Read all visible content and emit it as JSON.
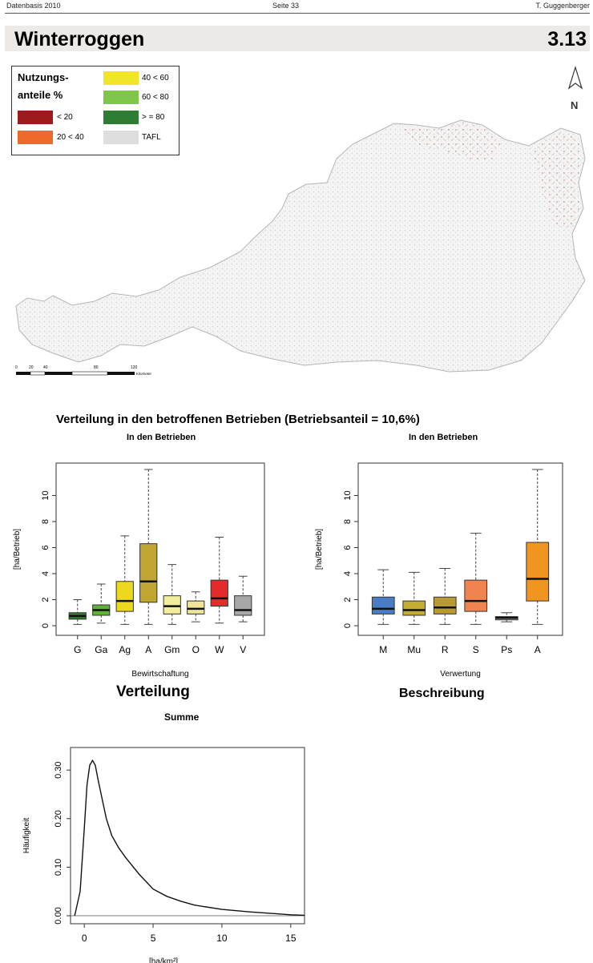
{
  "header": {
    "left": "Datenbasis 2010",
    "center": "Seite 33",
    "right": "T. Guggenberger"
  },
  "title": "Winterroggen",
  "page_number": "3.13",
  "legend": {
    "heading_1": "Nutzungs-",
    "heading_2": "anteile %",
    "items": [
      {
        "label": "< 20",
        "color": "#9b1b1f"
      },
      {
        "label": "20 < 40",
        "color": "#ee6a2b"
      },
      {
        "label": "40 < 60",
        "color": "#f1e52a"
      },
      {
        "label": "60 < 80",
        "color": "#7fc64a"
      },
      {
        "label": "> = 80",
        "color": "#2e7d32"
      },
      {
        "label": "TAFL",
        "color": "#dedede"
      }
    ]
  },
  "map": {
    "north_label": "N",
    "scale_ticks": [
      "0",
      "20",
      "40",
      "80",
      "120"
    ],
    "scale_unit": "Kilometer"
  },
  "section_title": "Verteilung in den betroffenen Betrieben (Betriebsanteil = 10,6%)",
  "bottom": {
    "title_left": "Verteilung",
    "sub_left": "Summe",
    "title_right": "Beschreibung"
  },
  "chart_data": [
    {
      "type": "boxplot",
      "title": "In den Betrieben",
      "xlabel": "Bewirtschaftung",
      "ylabel": "[ha/Betrieb]",
      "yticks": [
        0,
        2,
        4,
        6,
        8,
        10
      ],
      "ylim": [
        0,
        12
      ],
      "categories": [
        "G",
        "Ga",
        "Ag",
        "A",
        "Gm",
        "O",
        "W",
        "V"
      ],
      "colors": [
        "#2e7d32",
        "#5cb338",
        "#ecd91e",
        "#c0a531",
        "#f2ee9b",
        "#eee49a",
        "#e32b2b",
        "#a7a7a7"
      ],
      "boxes": [
        {
          "min": 0.1,
          "q1": 0.5,
          "median": 0.75,
          "q3": 1.0,
          "max": 2.0
        },
        {
          "min": 0.2,
          "q1": 0.8,
          "median": 1.2,
          "q3": 1.6,
          "max": 3.2
        },
        {
          "min": 0.1,
          "q1": 1.1,
          "median": 1.9,
          "q3": 3.4,
          "max": 6.9
        },
        {
          "min": 0.1,
          "q1": 1.8,
          "median": 3.4,
          "q3": 6.3,
          "max": 12.0
        },
        {
          "min": 0.1,
          "q1": 0.9,
          "median": 1.5,
          "q3": 2.3,
          "max": 4.7
        },
        {
          "min": 0.3,
          "q1": 0.9,
          "median": 1.3,
          "q3": 1.9,
          "max": 2.6
        },
        {
          "min": 0.2,
          "q1": 1.5,
          "median": 2.1,
          "q3": 3.5,
          "max": 6.8
        },
        {
          "min": 0.3,
          "q1": 0.8,
          "median": 1.2,
          "q3": 2.3,
          "max": 3.8
        }
      ]
    },
    {
      "type": "boxplot",
      "title": "In den Betrieben",
      "xlabel": "Verwertung",
      "ylabel": "[ha/Betrieb]",
      "yticks": [
        0,
        2,
        4,
        6,
        8,
        10
      ],
      "ylim": [
        0,
        12
      ],
      "categories": [
        "M",
        "Mu",
        "R",
        "S",
        "Ps",
        "A"
      ],
      "colors": [
        "#4b7cc6",
        "#c5ad31",
        "#b79a34",
        "#ef8451",
        "#b9b9b9",
        "#f0951f"
      ],
      "boxes": [
        {
          "min": 0.1,
          "q1": 0.9,
          "median": 1.3,
          "q3": 2.2,
          "max": 4.3
        },
        {
          "min": 0.1,
          "q1": 0.8,
          "median": 1.2,
          "q3": 1.9,
          "max": 4.1
        },
        {
          "min": 0.1,
          "q1": 0.9,
          "median": 1.4,
          "q3": 2.2,
          "max": 4.4
        },
        {
          "min": 0.1,
          "q1": 1.1,
          "median": 1.9,
          "q3": 3.5,
          "max": 7.1
        },
        {
          "min": 0.3,
          "q1": 0.45,
          "median": 0.6,
          "q3": 0.7,
          "max": 1.0
        },
        {
          "min": 0.1,
          "q1": 1.9,
          "median": 3.6,
          "q3": 6.4,
          "max": 12.0
        }
      ]
    },
    {
      "type": "line",
      "xlabel": "[ha/km²]",
      "ylabel": "Häufigkeit",
      "xticks": [
        0,
        5,
        10,
        15
      ],
      "yticks": [
        "0.00",
        "0.10",
        "0.20",
        "0.30"
      ],
      "xlim": [
        -1,
        16
      ],
      "ylim": [
        0,
        0.33
      ],
      "x": [
        -0.7,
        -0.3,
        0.0,
        0.2,
        0.4,
        0.6,
        0.8,
        1.0,
        1.3,
        1.6,
        2.0,
        2.5,
        3.0,
        4.0,
        5.0,
        6.0,
        7.0,
        8.0,
        10.0,
        12.0,
        14.0,
        15.0,
        16.0
      ],
      "y": [
        0.0,
        0.05,
        0.18,
        0.27,
        0.31,
        0.32,
        0.31,
        0.28,
        0.24,
        0.2,
        0.165,
        0.14,
        0.12,
        0.085,
        0.055,
        0.04,
        0.03,
        0.022,
        0.013,
        0.008,
        0.004,
        0.002,
        0.001
      ]
    }
  ]
}
